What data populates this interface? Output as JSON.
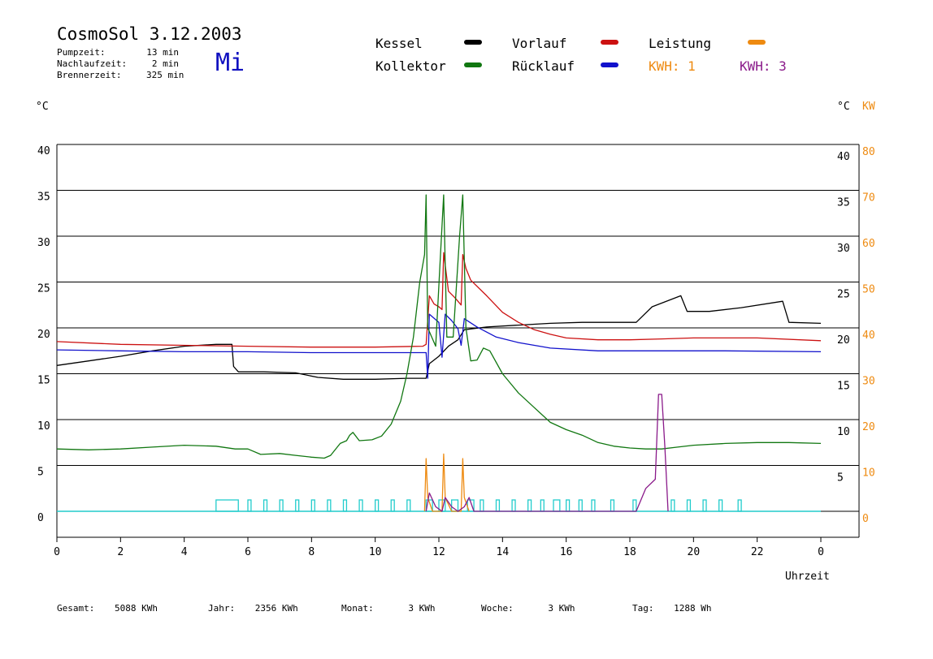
{
  "header": {
    "title": "CosmoSol 3.12.2003",
    "weekday": "Mi",
    "stats": [
      {
        "label": "Pumpzeit:",
        "value": "13 min"
      },
      {
        "label": "Nachlaufzeit:",
        "value": "2 min"
      },
      {
        "label": "Brennerzeit:",
        "value": "325 min"
      }
    ]
  },
  "legend": {
    "kessel": "Kessel",
    "vorlauf": "Vorlauf",
    "leistung": "Leistung",
    "kollektor": "Kollektor",
    "ruecklauf": "Rücklauf",
    "kwh1": "KWH: 1",
    "kwh3": "KWH: 3"
  },
  "axes": {
    "left_unit": "°C",
    "right_unit_c": "°C",
    "right_unit_kw": "KW",
    "xlabel": "Uhrzeit"
  },
  "footer": [
    {
      "label": "Gesamt:",
      "value": "5088 KWh"
    },
    {
      "label": "Jahr:",
      "value": "2356 KWh"
    },
    {
      "label": "Monat:",
      "value": "3 KWh"
    },
    {
      "label": "Woche:",
      "value": "3 KWh"
    },
    {
      "label": "Tag:",
      "value": "1288 Wh"
    }
  ],
  "colors": {
    "kessel": "#000000",
    "vorlauf": "#cc1111",
    "ruecklauf": "#1111cc",
    "kollektor": "#117711",
    "leistung": "#ee8a10",
    "kwh": "#8a1a8a",
    "pump": "#22cccc",
    "grid": "#000000"
  },
  "chart_data": {
    "type": "line",
    "xlabel": "Uhrzeit",
    "ylabel": "°C",
    "ylabel_right": "KW",
    "xlim": [
      0,
      24
    ],
    "ylim": [
      0,
      40
    ],
    "ylim_right": [
      0,
      80
    ],
    "x_ticks": [
      "0",
      "2",
      "4",
      "6",
      "8",
      "10",
      "12",
      "14",
      "16",
      "18",
      "20",
      "22",
      "0"
    ],
    "y_ticks_left": [
      "0",
      "5",
      "10",
      "15",
      "20",
      "25",
      "30",
      "35",
      "40"
    ],
    "y_ticks_right_c": [
      "5",
      "10",
      "15",
      "20",
      "25",
      "30",
      "35",
      "40"
    ],
    "y_ticks_right_kw": [
      "0",
      "10",
      "20",
      "30",
      "40",
      "50",
      "60",
      "70",
      "80"
    ],
    "grid": true,
    "series": [
      {
        "name": "Kessel",
        "color": "#000000",
        "points": [
          [
            0,
            15.9
          ],
          [
            1,
            16.4
          ],
          [
            2,
            16.9
          ],
          [
            3,
            17.5
          ],
          [
            4,
            18.0
          ],
          [
            5,
            18.2
          ],
          [
            5.5,
            18.2
          ],
          [
            5.55,
            15.8
          ],
          [
            5.7,
            15.2
          ],
          [
            6.5,
            15.2
          ],
          [
            7.5,
            15.1
          ],
          [
            8.2,
            14.6
          ],
          [
            9,
            14.4
          ],
          [
            10,
            14.4
          ],
          [
            11,
            14.5
          ],
          [
            11.6,
            14.5
          ],
          [
            11.7,
            16.1
          ],
          [
            12,
            16.9
          ],
          [
            12.3,
            18.0
          ],
          [
            12.6,
            18.7
          ],
          [
            12.8,
            19.8
          ],
          [
            13.5,
            20.1
          ],
          [
            14.5,
            20.3
          ],
          [
            15.5,
            20.5
          ],
          [
            16.5,
            20.6
          ],
          [
            18.2,
            20.6
          ],
          [
            18.7,
            22.3
          ],
          [
            19.6,
            23.5
          ],
          [
            19.8,
            21.8
          ],
          [
            20.5,
            21.8
          ],
          [
            21.5,
            22.2
          ],
          [
            22.8,
            22.9
          ],
          [
            23.0,
            20.6
          ],
          [
            24,
            20.5
          ]
        ]
      },
      {
        "name": "Vorlauf",
        "color": "#cc1111",
        "points": [
          [
            0,
            18.5
          ],
          [
            2,
            18.2
          ],
          [
            4,
            18.1
          ],
          [
            6,
            18.0
          ],
          [
            8,
            17.9
          ],
          [
            10,
            17.9
          ],
          [
            11.5,
            18.0
          ],
          [
            11.6,
            18.2
          ],
          [
            11.7,
            23.5
          ],
          [
            11.85,
            22.6
          ],
          [
            12.0,
            22.3
          ],
          [
            12.1,
            22.0
          ],
          [
            12.15,
            28.2
          ],
          [
            12.3,
            24.0
          ],
          [
            12.5,
            23.3
          ],
          [
            12.7,
            22.5
          ],
          [
            12.75,
            28.0
          ],
          [
            12.85,
            26.5
          ],
          [
            13.0,
            25.2
          ],
          [
            13.5,
            23.5
          ],
          [
            14,
            21.7
          ],
          [
            14.5,
            20.6
          ],
          [
            15,
            19.8
          ],
          [
            15.5,
            19.3
          ],
          [
            16,
            18.9
          ],
          [
            17,
            18.7
          ],
          [
            18,
            18.7
          ],
          [
            19,
            18.8
          ],
          [
            20,
            18.9
          ],
          [
            22,
            18.9
          ],
          [
            24,
            18.6
          ]
        ]
      },
      {
        "name": "Rücklauf",
        "color": "#1111cc",
        "points": [
          [
            0,
            17.6
          ],
          [
            2,
            17.5
          ],
          [
            4,
            17.4
          ],
          [
            6,
            17.4
          ],
          [
            8,
            17.3
          ],
          [
            10,
            17.3
          ],
          [
            11.6,
            17.3
          ],
          [
            11.65,
            14.5
          ],
          [
            11.7,
            21.5
          ],
          [
            12.0,
            20.6
          ],
          [
            12.1,
            16.8
          ],
          [
            12.2,
            21.5
          ],
          [
            12.4,
            20.8
          ],
          [
            12.6,
            19.9
          ],
          [
            12.7,
            18.1
          ],
          [
            12.8,
            21.0
          ],
          [
            13.2,
            20.1
          ],
          [
            13.8,
            19.0
          ],
          [
            14.5,
            18.4
          ],
          [
            15.5,
            17.8
          ],
          [
            17,
            17.5
          ],
          [
            19,
            17.5
          ],
          [
            21,
            17.5
          ],
          [
            24,
            17.4
          ]
        ]
      },
      {
        "name": "Kollektor",
        "color": "#117711",
        "points": [
          [
            0,
            6.8
          ],
          [
            1,
            6.7
          ],
          [
            2,
            6.8
          ],
          [
            3,
            7.0
          ],
          [
            4,
            7.2
          ],
          [
            5,
            7.1
          ],
          [
            5.6,
            6.8
          ],
          [
            6,
            6.8
          ],
          [
            6.4,
            6.2
          ],
          [
            7,
            6.3
          ],
          [
            7.5,
            6.1
          ],
          [
            8,
            5.9
          ],
          [
            8.4,
            5.8
          ],
          [
            8.6,
            6.1
          ],
          [
            8.9,
            7.4
          ],
          [
            9.1,
            7.7
          ],
          [
            9.2,
            8.3
          ],
          [
            9.3,
            8.6
          ],
          [
            9.5,
            7.7
          ],
          [
            9.9,
            7.8
          ],
          [
            10.2,
            8.2
          ],
          [
            10.5,
            9.5
          ],
          [
            10.8,
            12.0
          ],
          [
            11.0,
            15.0
          ],
          [
            11.2,
            19.0
          ],
          [
            11.4,
            25.0
          ],
          [
            11.55,
            28.0
          ],
          [
            11.6,
            34.5
          ],
          [
            11.65,
            20.0
          ],
          [
            11.9,
            18.0
          ],
          [
            12.05,
            28.0
          ],
          [
            12.15,
            34.5
          ],
          [
            12.25,
            19.0
          ],
          [
            12.45,
            19.0
          ],
          [
            12.65,
            30.0
          ],
          [
            12.75,
            34.5
          ],
          [
            12.85,
            20.0
          ],
          [
            13.0,
            16.4
          ],
          [
            13.2,
            16.5
          ],
          [
            13.4,
            17.8
          ],
          [
            13.6,
            17.5
          ],
          [
            14,
            15.0
          ],
          [
            14.5,
            12.9
          ],
          [
            15,
            11.3
          ],
          [
            15.5,
            9.7
          ],
          [
            16,
            8.9
          ],
          [
            16.5,
            8.3
          ],
          [
            17,
            7.5
          ],
          [
            17.5,
            7.1
          ],
          [
            18,
            6.9
          ],
          [
            18.5,
            6.8
          ],
          [
            19,
            6.8
          ],
          [
            19.5,
            7.0
          ],
          [
            20,
            7.2
          ],
          [
            21,
            7.4
          ],
          [
            22,
            7.5
          ],
          [
            23,
            7.5
          ],
          [
            24,
            7.4
          ]
        ]
      },
      {
        "name": "Leistung",
        "color": "#ee8a10",
        "axis": "right",
        "points": [
          [
            11.55,
            0
          ],
          [
            11.6,
            11.5
          ],
          [
            11.65,
            3
          ],
          [
            11.8,
            0
          ],
          [
            12.1,
            0
          ],
          [
            12.15,
            12.5
          ],
          [
            12.2,
            3
          ],
          [
            12.4,
            0
          ],
          [
            12.7,
            0
          ],
          [
            12.75,
            11.5
          ],
          [
            12.8,
            3
          ],
          [
            12.95,
            0
          ]
        ]
      },
      {
        "name": "KWH",
        "color": "#8a1a8a",
        "axis": "right",
        "points": [
          [
            11.6,
            0
          ],
          [
            11.7,
            4
          ],
          [
            11.9,
            1
          ],
          [
            12.1,
            0
          ],
          [
            12.2,
            3
          ],
          [
            12.4,
            1
          ],
          [
            12.6,
            0
          ],
          [
            12.8,
            1
          ],
          [
            12.95,
            3
          ],
          [
            13.1,
            0
          ],
          [
            18.2,
            0
          ],
          [
            18.5,
            5
          ],
          [
            18.8,
            7
          ],
          [
            18.9,
            25.5
          ],
          [
            19.0,
            25.5
          ],
          [
            19.1,
            14
          ],
          [
            19.2,
            0
          ]
        ]
      }
    ],
    "pump_state": [
      [
        5.0,
        5.7
      ],
      [
        6.0,
        6.1
      ],
      [
        6.5,
        6.6
      ],
      [
        7.0,
        7.1
      ],
      [
        7.5,
        7.6
      ],
      [
        8.0,
        8.1
      ],
      [
        8.5,
        8.6
      ],
      [
        9.0,
        9.1
      ],
      [
        9.5,
        9.6
      ],
      [
        10.0,
        10.1
      ],
      [
        10.5,
        10.6
      ],
      [
        11.0,
        11.1
      ],
      [
        11.6,
        11.8
      ],
      [
        12.0,
        12.2
      ],
      [
        12.4,
        12.6
      ],
      [
        12.9,
        13.1
      ],
      [
        13.3,
        13.4
      ],
      [
        13.8,
        13.9
      ],
      [
        14.3,
        14.4
      ],
      [
        14.8,
        14.9
      ],
      [
        15.2,
        15.3
      ],
      [
        15.6,
        15.8
      ],
      [
        16.0,
        16.1
      ],
      [
        16.4,
        16.5
      ],
      [
        16.8,
        16.9
      ],
      [
        17.4,
        17.5
      ],
      [
        18.1,
        18.2
      ],
      [
        19.3,
        19.4
      ],
      [
        19.8,
        19.9
      ],
      [
        20.3,
        20.4
      ],
      [
        20.8,
        20.9
      ],
      [
        21.4,
        21.5
      ]
    ]
  }
}
